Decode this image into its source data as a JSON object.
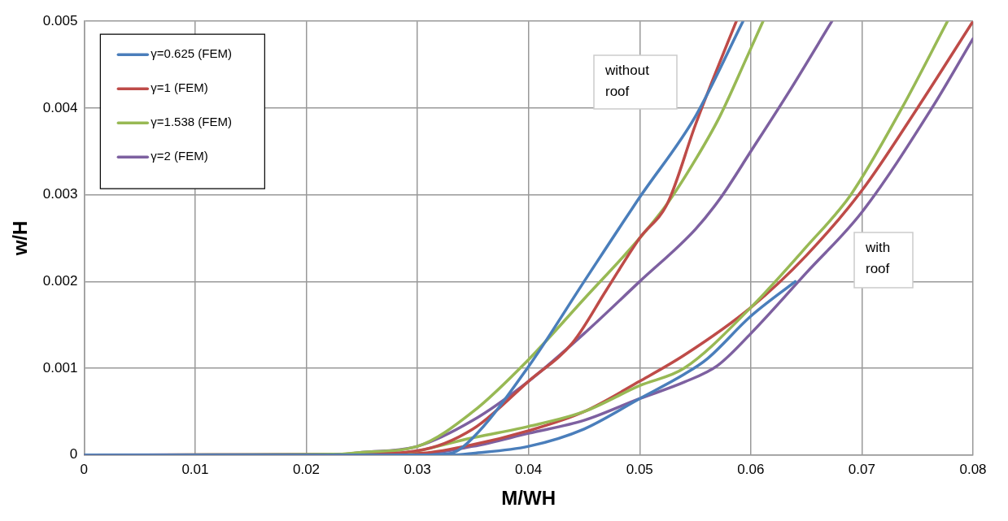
{
  "chart_data": {
    "type": "line",
    "xlabel": "M/WH",
    "ylabel": "w/H",
    "xlim": [
      0,
      0.08
    ],
    "ylim": [
      0,
      0.005
    ],
    "xticks": [
      0,
      0.01,
      0.02,
      0.03,
      0.04,
      0.05,
      0.06,
      0.07,
      0.08
    ],
    "yticks": [
      0,
      0.001,
      0.002,
      0.003,
      0.004,
      0.005
    ],
    "grid": true,
    "legend": "top left",
    "marker": "none",
    "line_style": "solid",
    "annotations": [
      "without roof",
      "with roof"
    ],
    "series": [
      {
        "name": "γ=0.625 (FEM)",
        "color": "#4a7ebb",
        "x": [
          0,
          0.02,
          0.03,
          0.033,
          0.035,
          0.04,
          0.045,
          0.05,
          0.055,
          0.0593
        ],
        "values": [
          0,
          0,
          0,
          2e-05,
          0.0002,
          0.00102,
          0.002,
          0.00297,
          0.0039,
          0.005
        ]
      },
      {
        "name": "γ=1 (FEM)",
        "color": "#be4b48",
        "x": [
          0,
          0.022,
          0.03,
          0.035,
          0.04,
          0.044,
          0.047,
          0.05,
          0.0525,
          0.055,
          0.0565,
          0.0587
        ],
        "values": [
          0,
          0,
          5e-05,
          0.0003,
          0.00085,
          0.0013,
          0.0019,
          0.0025,
          0.0029,
          0.0038,
          0.0043,
          0.005
        ]
      },
      {
        "name": "γ=1.538 (FEM)",
        "color": "#98b954",
        "x": [
          0,
          0.022,
          0.025,
          0.03,
          0.035,
          0.04,
          0.045,
          0.05,
          0.0525,
          0.055,
          0.0572,
          0.0597,
          0.0611
        ],
        "values": [
          0,
          0,
          3e-05,
          0.0001,
          0.0005,
          0.0011,
          0.0018,
          0.0025,
          0.0029,
          0.0034,
          0.0039,
          0.0046,
          0.005
        ]
      },
      {
        "name": "γ=2 (FEM)",
        "color": "#7d60a0",
        "x": [
          0,
          0.022,
          0.025,
          0.03,
          0.035,
          0.04,
          0.045,
          0.05,
          0.055,
          0.0572,
          0.06,
          0.0635,
          0.0673
        ],
        "values": [
          0,
          0,
          3e-05,
          0.0001,
          0.0004,
          0.00085,
          0.0014,
          0.002,
          0.0026,
          0.00295,
          0.0035,
          0.0042,
          0.005
        ]
      },
      {
        "color": "#4a7ebb",
        "x": [
          0,
          0.033,
          0.035,
          0.04,
          0.045,
          0.05,
          0.054,
          0.056,
          0.06,
          0.064
        ],
        "values": [
          0,
          0,
          2e-05,
          0.0001,
          0.0003,
          0.00065,
          0.00093,
          0.0011,
          0.0016,
          0.002
        ]
      },
      {
        "color": "#98b954",
        "x": [
          0,
          0.028,
          0.035,
          0.04,
          0.045,
          0.05,
          0.054,
          0.06,
          0.065,
          0.069,
          0.0736,
          0.0777
        ],
        "values": [
          0,
          2e-05,
          0.0002,
          0.00033,
          0.0005,
          0.0008,
          0.001,
          0.0017,
          0.0024,
          0.003,
          0.004,
          0.005
        ]
      },
      {
        "color": "#be4b48",
        "x": [
          0,
          0.03,
          0.035,
          0.04,
          0.045,
          0.05,
          0.054,
          0.06,
          0.065,
          0.07,
          0.075,
          0.08
        ],
        "values": [
          0,
          2e-05,
          0.00012,
          0.00028,
          0.0005,
          0.00085,
          0.00115,
          0.0017,
          0.0023,
          0.00305,
          0.004,
          0.005
        ]
      },
      {
        "color": "#7d60a0",
        "x": [
          0,
          0.03,
          0.035,
          0.04,
          0.045,
          0.05,
          0.054,
          0.057,
          0.06,
          0.065,
          0.07,
          0.0763,
          0.08
        ],
        "values": [
          0,
          1e-05,
          0.0001,
          0.00025,
          0.0004,
          0.00065,
          0.00084,
          0.00103,
          0.0014,
          0.0021,
          0.0028,
          0.004,
          0.0048
        ]
      }
    ]
  }
}
